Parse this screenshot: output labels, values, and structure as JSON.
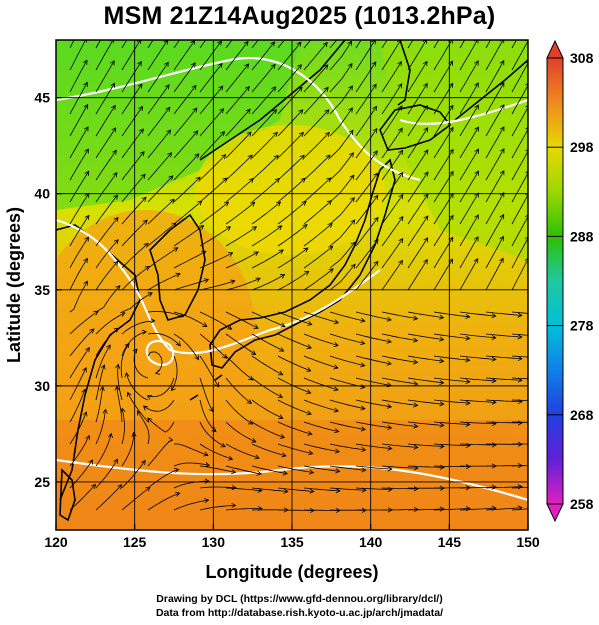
{
  "title": "MSM 21Z14Aug2025 (1013.2hPa)",
  "map": {
    "lon_range": [
      120,
      150
    ],
    "lat_range": [
      22.5,
      48
    ],
    "xlabel": "Longitude (degrees)",
    "ylabel": "Latitude  (degrees)",
    "x_ticks": [
      "120",
      "125",
      "130",
      "135",
      "140",
      "145",
      "150"
    ],
    "y_ticks": [
      "25",
      "30",
      "35",
      "40",
      "45"
    ],
    "grid": true,
    "field": "temperature",
    "overlay": "wind streamlines"
  },
  "colorbar": {
    "min": 258,
    "max": 308,
    "tick_labels": [
      "308",
      "298",
      "288",
      "278",
      "268",
      "258"
    ],
    "colors": {
      "308": "#e0402a",
      "298": "#e8d800",
      "288": "#2ec000",
      "278": "#00c0d8",
      "268": "#2040e0",
      "258": "#e020c0"
    }
  },
  "credits": {
    "line1": "Drawing by DCL (https://www.gfd-dennou.org/library/dcl/)",
    "line2": "Data from http://database.rish.kyoto-u.ac.jp/arch/jmadata/"
  }
}
